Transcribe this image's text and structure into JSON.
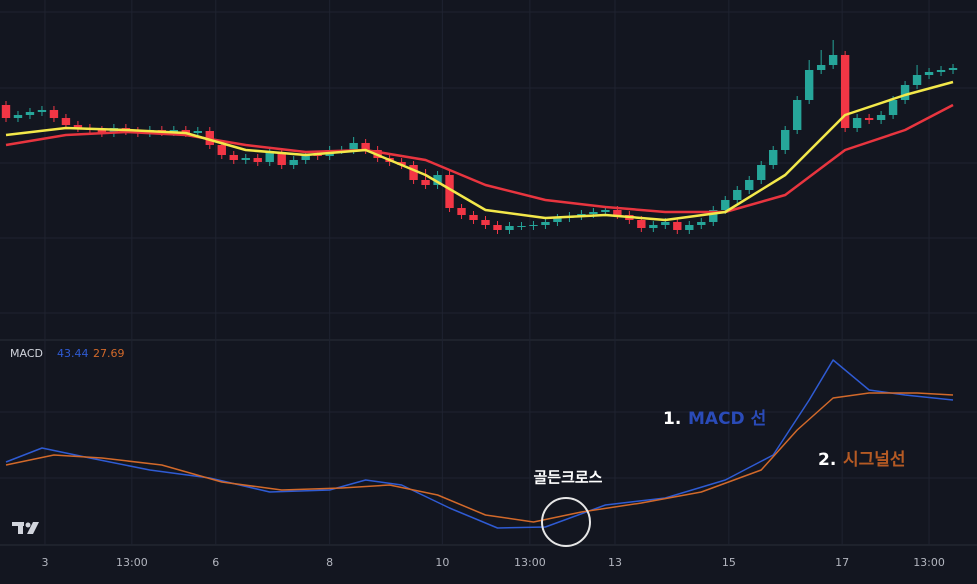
{
  "chart_data": [
    {
      "type": "candlestick",
      "x": [
        0,
        1,
        2,
        3,
        4,
        5,
        6,
        7,
        8,
        9,
        10,
        11,
        12,
        13,
        14,
        15,
        16,
        17,
        18,
        19,
        20,
        21,
        22,
        23,
        24,
        25,
        26,
        27,
        28,
        29,
        30,
        31,
        32,
        33,
        34,
        35,
        36,
        37,
        38,
        39,
        40,
        41,
        42,
        43,
        44,
        45,
        46,
        47,
        48,
        49,
        50,
        51,
        52,
        53,
        54,
        55,
        56,
        57,
        58,
        59,
        60,
        61,
        62,
        63,
        64,
        65,
        66,
        67,
        68,
        69,
        70,
        71,
        72,
        73,
        74,
        75,
        76,
        77,
        78,
        79
      ],
      "open": [
        235,
        222,
        225,
        228,
        230,
        222,
        215,
        212,
        210,
        207,
        212,
        209,
        207,
        210,
        208,
        210,
        207,
        209,
        195,
        185,
        180,
        182,
        178,
        188,
        175,
        180,
        185,
        184,
        190,
        190,
        197,
        190,
        182,
        178,
        175,
        160,
        155,
        165,
        132,
        125,
        120,
        115,
        110,
        114,
        114,
        115,
        118,
        122,
        124,
        126,
        128,
        130,
        125,
        120,
        112,
        115,
        118,
        110,
        115,
        118,
        130,
        140,
        150,
        160,
        175,
        190,
        210,
        240,
        270,
        275,
        285,
        212,
        222,
        220,
        225,
        240,
        255,
        265,
        268,
        270
      ],
      "high": [
        239,
        229,
        232,
        234,
        234,
        226,
        219,
        216,
        214,
        216,
        216,
        213,
        214,
        214,
        214,
        214,
        213,
        213,
        199,
        189,
        186,
        186,
        192,
        192,
        184,
        189,
        189,
        194,
        194,
        203,
        201,
        194,
        186,
        182,
        179,
        171,
        169,
        169,
        136,
        129,
        124,
        119,
        118,
        118,
        119,
        122,
        126,
        128,
        130,
        132,
        134,
        134,
        129,
        124,
        119,
        122,
        122,
        119,
        122,
        134,
        144,
        154,
        164,
        179,
        194,
        214,
        244,
        280,
        290,
        300,
        289,
        226,
        226,
        229,
        244,
        259,
        275,
        272,
        274,
        276
      ],
      "low": [
        218,
        218,
        221,
        224,
        218,
        211,
        208,
        206,
        203,
        203,
        205,
        203,
        203,
        204,
        204,
        203,
        203,
        191,
        181,
        176,
        176,
        174,
        174,
        171,
        171,
        176,
        180,
        180,
        186,
        186,
        186,
        178,
        174,
        171,
        156,
        151,
        151,
        128,
        121,
        116,
        111,
        106,
        106,
        110,
        110,
        111,
        114,
        118,
        120,
        122,
        124,
        121,
        116,
        108,
        108,
        111,
        106,
        106,
        111,
        114,
        126,
        136,
        146,
        156,
        171,
        186,
        206,
        236,
        266,
        271,
        208,
        208,
        216,
        216,
        221,
        236,
        251,
        261,
        264,
        266
      ],
      "close": [
        222,
        225,
        228,
        230,
        222,
        215,
        212,
        210,
        207,
        212,
        209,
        207,
        210,
        208,
        210,
        207,
        209,
        195,
        185,
        180,
        182,
        178,
        188,
        175,
        180,
        185,
        184,
        190,
        190,
        197,
        190,
        182,
        178,
        175,
        160,
        155,
        165,
        132,
        125,
        120,
        115,
        110,
        114,
        114,
        115,
        118,
        122,
        124,
        126,
        128,
        130,
        125,
        120,
        112,
        115,
        118,
        110,
        115,
        118,
        130,
        140,
        150,
        160,
        175,
        190,
        210,
        240,
        270,
        275,
        285,
        212,
        222,
        220,
        225,
        240,
        255,
        265,
        268,
        270,
        272
      ],
      "up_color": "#26a69a",
      "down_color": "#f23645",
      "xlim": [
        -0.5,
        81
      ],
      "ylim": [
        0,
        340
      ],
      "overlays": [
        {
          "color": "#e8353f",
          "x": [
            0,
            5,
            10,
            15,
            20,
            25,
            30,
            35,
            40,
            45,
            50,
            55,
            60,
            65,
            70,
            75,
            79
          ],
          "values": [
            195,
            205,
            208,
            205,
            195,
            188,
            190,
            180,
            155,
            140,
            133,
            128,
            128,
            145,
            190,
            210,
            235
          ]
        },
        {
          "color": "#f3e84a",
          "x": [
            0,
            5,
            10,
            15,
            20,
            25,
            30,
            35,
            40,
            45,
            50,
            55,
            60,
            65,
            70,
            75,
            79
          ],
          "values": [
            205,
            212,
            210,
            207,
            190,
            185,
            190,
            165,
            130,
            122,
            125,
            120,
            128,
            165,
            225,
            245,
            258
          ]
        }
      ]
    },
    {
      "type": "line",
      "title": "MACD",
      "readouts": [
        43.44,
        27.69
      ],
      "xlim": [
        -0.5,
        81
      ],
      "ylim": [
        0,
        200
      ],
      "xticks": [
        {
          "value": 3.25,
          "label": "3"
        },
        {
          "value": 10.5,
          "label": "13:00"
        },
        {
          "value": 17.5,
          "label": "6"
        },
        {
          "value": 27,
          "label": "8"
        },
        {
          "value": 36.4,
          "label": "10"
        },
        {
          "value": 43.7,
          "label": "13:00"
        },
        {
          "value": 50.8,
          "label": "13"
        },
        {
          "value": 60.3,
          "label": "15"
        },
        {
          "value": 69.75,
          "label": "17"
        },
        {
          "value": 77,
          "label": "13:00"
        }
      ],
      "grid": true,
      "series": [
        {
          "color": "#2f5bd3",
          "x": [
            0,
            3,
            7,
            12,
            17,
            22,
            27,
            30,
            33,
            37,
            41,
            45,
            50,
            55,
            60,
            64,
            67,
            69,
            72,
            75,
            79
          ],
          "values": [
            83,
            97,
            87,
            75,
            67,
            53,
            55,
            65,
            60,
            37,
            17,
            18,
            40,
            47,
            65,
            90,
            145,
            185,
            155,
            150,
            145
          ]
        },
        {
          "color": "#d2692a",
          "x": [
            0,
            4,
            8,
            13,
            18,
            23,
            28,
            32,
            36,
            40,
            44,
            48,
            53,
            58,
            63,
            66,
            69,
            72,
            76,
            79
          ],
          "values": [
            80,
            90,
            87,
            80,
            63,
            55,
            57,
            60,
            50,
            30,
            23,
            33,
            42,
            53,
            75,
            115,
            147,
            152,
            152,
            150
          ]
        }
      ],
      "annotations": [
        {
          "label": "1.",
          "text": "MACD 선"
        },
        {
          "label": "2.",
          "text": "시그널선"
        },
        {
          "text": "골든크로스"
        }
      ]
    }
  ]
}
